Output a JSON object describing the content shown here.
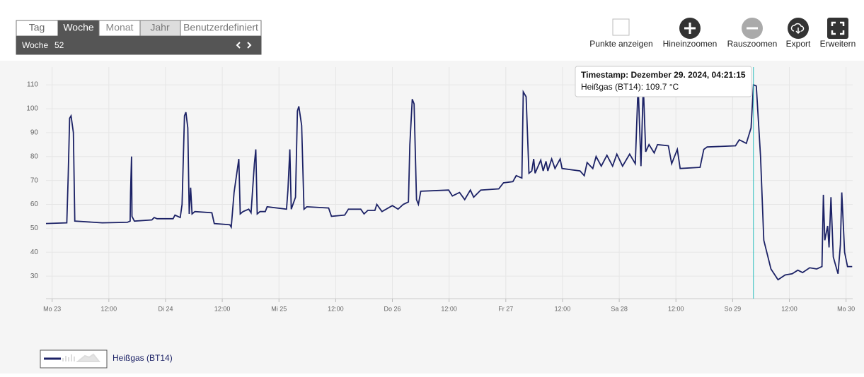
{
  "toolbar": {
    "tabs": [
      "Tag",
      "Woche",
      "Monat",
      "Jahr",
      "Benutzerdefiniert"
    ],
    "period_label": "Woche",
    "period_value": "52",
    "actions": [
      "Punkte anzeigen",
      "Hineinzoomen",
      "Rauszoomen",
      "Export",
      "Erweitern"
    ]
  },
  "chart_data": {
    "type": "line",
    "tooltip": {
      "title": "Timestamp: Dezember 29. 2024, 04:21:15",
      "text": "Heißgas (BT14): 109.7 °C"
    },
    "xlim": [
      -1.3,
      169.4
    ],
    "xticks": [
      {
        "value": 0,
        "label": "Mo 23"
      },
      {
        "value": 12,
        "label": "12:00"
      },
      {
        "value": 24,
        "label": "Di 24"
      },
      {
        "value": 36,
        "label": "12:00"
      },
      {
        "value": 48,
        "label": "Mi 25"
      },
      {
        "value": 60,
        "label": "12:00"
      },
      {
        "value": 72,
        "label": "Do 26"
      },
      {
        "value": 84,
        "label": "12:00"
      },
      {
        "value": 96,
        "label": "Fr 27"
      },
      {
        "value": 108,
        "label": "12:00"
      },
      {
        "value": 120,
        "label": "Sa 28"
      },
      {
        "value": 132,
        "label": "12:00"
      },
      {
        "value": 144,
        "label": "So 29"
      },
      {
        "value": 156,
        "label": "12:00"
      },
      {
        "value": 168,
        "label": "Mo 30"
      }
    ],
    "ylim": [
      20.6,
      117.4
    ],
    "yticks": [
      30,
      40,
      50,
      60,
      70,
      80,
      90,
      100,
      110
    ],
    "grid": true,
    "x": [
      -1.3,
      3.1,
      3.4,
      3.7,
      4.0,
      4.5,
      4.8,
      10.6,
      15.9,
      16.5,
      16.6,
      16.8,
      16.9,
      17.4,
      21.1,
      21.6,
      22.2,
      25.6,
      26.0,
      27.1,
      27.5,
      28.0,
      28.3,
      28.7,
      29.0,
      29.3,
      29.6,
      30.2,
      33.8,
      34.3,
      37.6,
      37.9,
      38.5,
      39.5,
      39.8,
      40.4,
      41.6,
      42.1,
      42.8,
      43.1,
      43.4,
      44.0,
      45.1,
      45.5,
      49.6,
      49.9,
      50.3,
      50.6,
      51.5,
      51.9,
      52.2,
      52.8,
      53.3,
      53.9,
      58.5,
      59.1,
      61.9,
      62.7,
      65.3,
      66.0,
      66.8,
      68.3,
      68.7,
      69.8,
      72.0,
      73.2,
      74.3,
      75.4,
      75.7,
      76.2,
      76.6,
      77.1,
      77.5,
      78.0,
      83.9,
      84.7,
      86.2,
      87.3,
      88.5,
      89.2,
      90.7,
      94.5,
      95.5,
      97.5,
      98.2,
      99.4,
      99.7,
      100.3,
      100.9,
      101.5,
      101.9,
      102.2,
      103.4,
      103.9,
      104.5,
      104.9,
      105.7,
      106.4,
      107.5,
      107.9,
      111.7,
      112.6,
      113.2,
      114.4,
      115.1,
      116.2,
      117.4,
      118.6,
      119.5,
      120.7,
      122.2,
      123.4,
      124.0,
      124.6,
      125.1,
      125.6,
      126.3,
      127.4,
      128.1,
      130.4,
      131.1,
      132.3,
      132.9,
      137.1,
      137.9,
      138.6,
      144.6,
      145.4,
      146.9,
      147.9,
      148.4,
      149.0,
      149.9,
      150.6,
      152.1,
      153.6,
      155.1,
      156.6,
      157.8,
      158.8,
      160.3,
      161.8,
      162.9,
      163.2,
      163.5,
      164.1,
      164.4,
      164.8,
      165.3,
      166.3,
      166.8,
      167.1,
      167.7,
      168.3,
      169.3
    ],
    "series": [
      {
        "name": "Heißgas (BT14)",
        "color": "#1c2266",
        "values": [
          52,
          52.3,
          72,
          96,
          97,
          90,
          53,
          52.3,
          52.5,
          53,
          65,
          80,
          55,
          53,
          53.5,
          54.5,
          54,
          54,
          55.5,
          54.5,
          60,
          97,
          98.5,
          92,
          56,
          67,
          56,
          57,
          56.5,
          52,
          51.5,
          50.5,
          65,
          79,
          56,
          57,
          58,
          56.5,
          77,
          83,
          56,
          57,
          57,
          59,
          58,
          66,
          83,
          58,
          63,
          99,
          101,
          93,
          58,
          59,
          58.5,
          55,
          55.5,
          58,
          58,
          56,
          57.5,
          57.5,
          60,
          57,
          59.5,
          58,
          60,
          61,
          85,
          104,
          102,
          62,
          60,
          65.5,
          66,
          63.5,
          65,
          62,
          66,
          63,
          66,
          66.5,
          69,
          69.5,
          72,
          71,
          107,
          105,
          73,
          74,
          79,
          73,
          78.5,
          74,
          78,
          74,
          79,
          75,
          79,
          75,
          74,
          72,
          77.5,
          75,
          80,
          76,
          80.5,
          76,
          81,
          76,
          81,
          77,
          110,
          76,
          110,
          82,
          85,
          81.5,
          85,
          84.5,
          77,
          83,
          75,
          75.5,
          83,
          84,
          84.5,
          87,
          85.5,
          92,
          110,
          109.5,
          80,
          45,
          33,
          28.5,
          30.5,
          31,
          32.5,
          31.5,
          33.5,
          33,
          34,
          64,
          45,
          51,
          42,
          63,
          38,
          31,
          43,
          65,
          40,
          34,
          34
        ]
      }
    ]
  }
}
